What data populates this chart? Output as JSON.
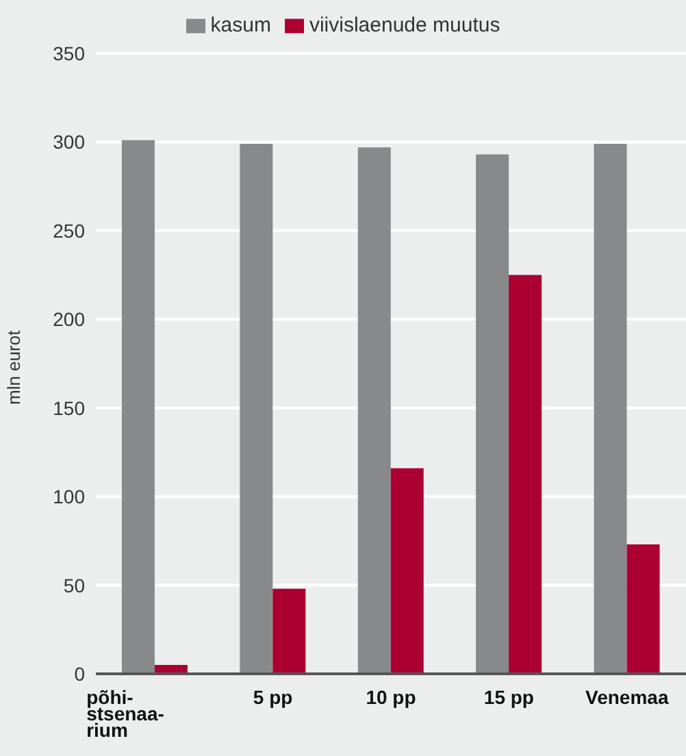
{
  "chart_data": {
    "type": "bar",
    "ylabel": "mln eurot",
    "categories": [
      "põhi-stsenaa-rium",
      "5 pp",
      "10 pp",
      "15 pp",
      "Venemaa"
    ],
    "series": [
      {
        "name": "kasum",
        "color": "#88898b",
        "values": [
          301,
          299,
          297,
          293,
          299
        ]
      },
      {
        "name": "viivislaenude muutus",
        "color": "#ac0033",
        "values": [
          5,
          48,
          116,
          225,
          73
        ]
      }
    ],
    "ylim": [
      0,
      350
    ],
    "yticks": [
      0,
      50,
      100,
      150,
      200,
      250,
      300,
      350
    ],
    "grid": "y",
    "legend": "top"
  }
}
